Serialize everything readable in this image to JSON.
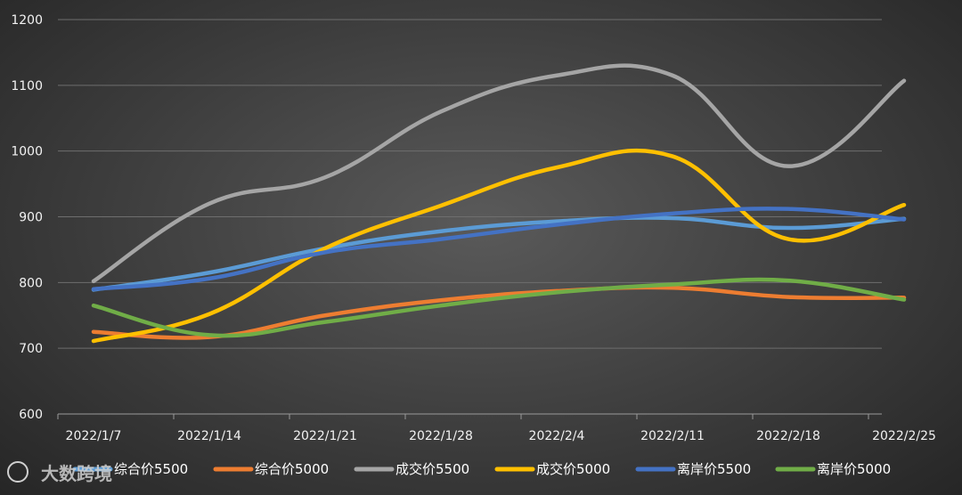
{
  "watermark_text": "大数跨境",
  "chart_data": {
    "type": "line",
    "x": [
      "2022/1/7",
      "2022/1/14",
      "2022/1/21",
      "2022/1/28",
      "2022/2/4",
      "2022/2/11",
      "2022/2/18",
      "2022/2/25"
    ],
    "ylim": [
      600,
      1200
    ],
    "yticks": [
      600,
      700,
      800,
      900,
      1000,
      1100,
      1200
    ],
    "grid": true,
    "legend": "bottom",
    "smooth": true,
    "series": [
      {
        "name": "综合价5500",
        "color": "#5b9bd5",
        "values": [
          789,
          815,
          852,
          878,
          893,
          898,
          883,
          897
        ]
      },
      {
        "name": "综合价5000",
        "color": "#ed7d31",
        "values": [
          725,
          717,
          750,
          773,
          787,
          792,
          778,
          777
        ]
      },
      {
        "name": "成交价5500",
        "color": "#a5a5a5",
        "values": [
          802,
          920,
          960,
          1060,
          1115,
          1115,
          977,
          1107
        ]
      },
      {
        "name": "成交价5000",
        "color": "#ffc000",
        "values": [
          711,
          752,
          852,
          917,
          975,
          992,
          866,
          918
        ]
      },
      {
        "name": "离岸价5500",
        "color": "#4472c4",
        "values": [
          790,
          806,
          846,
          866,
          888,
          905,
          912,
          896
        ]
      },
      {
        "name": "离岸价5000",
        "color": "#70ad47",
        "values": [
          765,
          720,
          740,
          765,
          785,
          797,
          803,
          774
        ]
      }
    ]
  }
}
